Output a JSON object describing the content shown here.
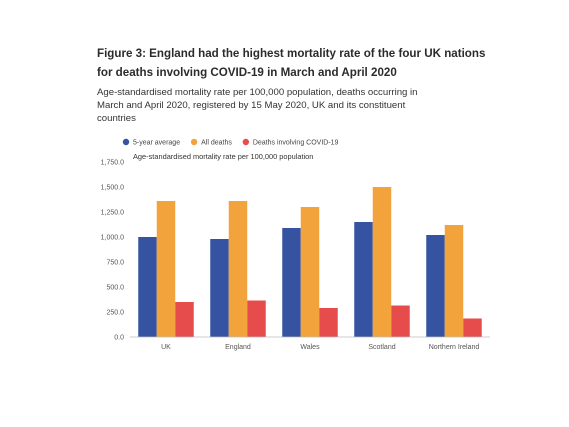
{
  "title": "Figure 3: England had the highest mortality rate of the four UK nations for deaths involving COVID-19 in March and April 2020",
  "subtitle": "Age-standardised mortality rate per 100,000 population, deaths occurring in March and April 2020, registered by 15 May 2020, UK and its constituent countries",
  "chart_data": {
    "type": "bar",
    "categories": [
      "UK",
      "England",
      "Wales",
      "Scotland",
      "Northern Ireland"
    ],
    "series": [
      {
        "name": "5-year average",
        "color": "#3653a2",
        "values": [
          1000,
          980,
          1090,
          1150,
          1020
        ]
      },
      {
        "name": "All deaths",
        "color": "#f3a33c",
        "values": [
          1360,
          1360,
          1300,
          1500,
          1120
        ]
      },
      {
        "name": "Deaths involving COVID-19",
        "color": "#e74c4c",
        "values": [
          350,
          365,
          290,
          315,
          185
        ]
      }
    ],
    "ylabel": "Age-standardised mortality rate per 100,000 population",
    "yticks": [
      "0.0",
      "250.0",
      "500.0",
      "750.0",
      "1,000.0",
      "1,250.0",
      "1,500.0",
      "1,750.0"
    ],
    "ylim": [
      0,
      1750
    ],
    "legend_position": "top",
    "grid": false
  }
}
